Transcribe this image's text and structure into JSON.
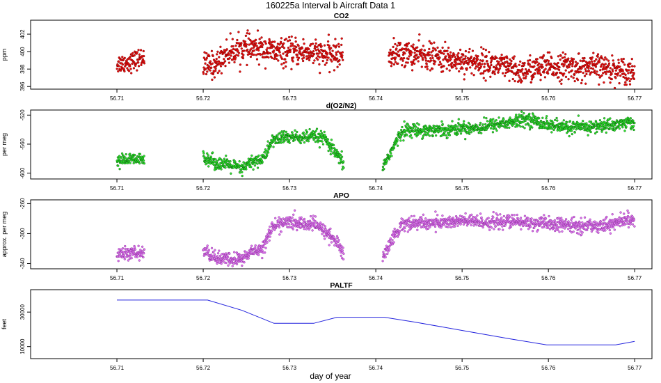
{
  "figure": {
    "title": "160225a   Interval b Aircraft Data 1",
    "xlabel": "day of year",
    "x_ticks": [
      56.71,
      56.72,
      56.73,
      56.74,
      56.75,
      56.76,
      56.77
    ],
    "xlim": [
      56.7,
      56.772
    ]
  },
  "chart_data": [
    {
      "type": "scatter",
      "title": "CO2",
      "ylabel": "ppm",
      "ylim": [
        395.7,
        403.6
      ],
      "y_ticks": [
        396,
        398,
        400,
        402
      ],
      "color": "#e81010",
      "edge": "#7a0000",
      "segments": [
        {
          "x0": 56.71,
          "x1": 56.7132,
          "anchors": [
            [
              56.71,
              398.6
            ],
            [
              56.7115,
              398.8
            ],
            [
              56.7132,
              399.4
            ]
          ],
          "noise": 0.55
        },
        {
          "x0": 56.72,
          "x1": 56.7362,
          "anchors": [
            [
              56.72,
              398.3
            ],
            [
              56.7215,
              398.5
            ],
            [
              56.7225,
              399.7
            ],
            [
              56.7245,
              400.4
            ],
            [
              56.727,
              400.3
            ],
            [
              56.7285,
              399.9
            ],
            [
              56.73,
              399.9
            ],
            [
              56.732,
              400.0
            ],
            [
              56.734,
              399.6
            ],
            [
              56.7362,
              399.7
            ]
          ],
          "noise": 0.75
        },
        {
          "x0": 56.7415,
          "x1": 56.77,
          "anchors": [
            [
              56.7415,
              399.6
            ],
            [
              56.743,
              399.8
            ],
            [
              56.745,
              399.6
            ],
            [
              56.748,
              399.2
            ],
            [
              56.75,
              399.0
            ],
            [
              56.753,
              398.6
            ],
            [
              56.755,
              398.2
            ],
            [
              56.7565,
              397.6
            ],
            [
              56.758,
              398.0
            ],
            [
              56.76,
              398.2
            ],
            [
              56.762,
              398.3
            ],
            [
              56.764,
              398.1
            ],
            [
              56.766,
              398.2
            ],
            [
              56.768,
              397.9
            ],
            [
              56.77,
              397.7
            ]
          ],
          "noise": 0.75
        }
      ]
    },
    {
      "type": "scatter",
      "title": "d(O2/N2)",
      "ylabel": "per meg",
      "ylim": [
        -608,
        -513
      ],
      "y_ticks": [
        -600,
        -560,
        -520
      ],
      "color": "#2ee62e",
      "edge": "#0a5a0a",
      "segments": [
        {
          "x0": 56.71,
          "x1": 56.7132,
          "anchors": [
            [
              56.71,
              -583
            ],
            [
              56.7115,
              -581
            ],
            [
              56.7132,
              -582
            ]
          ],
          "noise": 4
        },
        {
          "x0": 56.72,
          "x1": 56.7363,
          "anchors": [
            [
              56.72,
              -576
            ],
            [
              56.7215,
              -586
            ],
            [
              56.7235,
              -590
            ],
            [
              56.7245,
              -595
            ],
            [
              56.7255,
              -585
            ],
            [
              56.727,
              -580
            ],
            [
              56.728,
              -555
            ],
            [
              56.7295,
              -550
            ],
            [
              56.7315,
              -551
            ],
            [
              56.733,
              -550
            ],
            [
              56.734,
              -552
            ],
            [
              56.735,
              -568
            ],
            [
              56.7363,
              -588
            ]
          ],
          "noise": 4.5
        },
        {
          "x0": 56.7408,
          "x1": 56.77,
          "anchors": [
            [
              56.7408,
              -592
            ],
            [
              56.742,
              -565
            ],
            [
              56.7432,
              -540
            ],
            [
              56.745,
              -541
            ],
            [
              56.748,
              -540
            ],
            [
              56.75,
              -538
            ],
            [
              56.752,
              -537
            ],
            [
              56.754,
              -532
            ],
            [
              56.756,
              -530
            ],
            [
              56.7575,
              -525
            ],
            [
              56.759,
              -530
            ],
            [
              56.761,
              -536
            ],
            [
              56.764,
              -537
            ],
            [
              56.766,
              -535
            ],
            [
              56.768,
              -533
            ],
            [
              56.7695,
              -530
            ],
            [
              56.77,
              -532
            ]
          ],
          "noise": 4.5
        }
      ]
    },
    {
      "type": "scatter",
      "title": "APO",
      "ylabel": "approx. per meg",
      "ylim": [
        -347,
        -255
      ],
      "y_ticks": [
        -340,
        -300,
        -260
      ],
      "color": "#dd77ee",
      "edge": "#8a2e9a",
      "segments": [
        {
          "x0": 56.71,
          "x1": 56.7132,
          "anchors": [
            [
              56.71,
              -328
            ],
            [
              56.7115,
              -326
            ],
            [
              56.7132,
              -326
            ]
          ],
          "noise": 4
        },
        {
          "x0": 56.72,
          "x1": 56.7363,
          "anchors": [
            [
              56.72,
              -322
            ],
            [
              56.7215,
              -333
            ],
            [
              56.7235,
              -335
            ],
            [
              56.7245,
              -334
            ],
            [
              56.7255,
              -325
            ],
            [
              56.727,
              -318
            ],
            [
              56.728,
              -291
            ],
            [
              56.7295,
              -285
            ],
            [
              56.7315,
              -287
            ],
            [
              56.733,
              -288
            ],
            [
              56.7345,
              -300
            ],
            [
              56.7355,
              -312
            ],
            [
              56.7363,
              -328
            ]
          ],
          "noise": 4.5
        },
        {
          "x0": 56.7408,
          "x1": 56.77,
          "anchors": [
            [
              56.7408,
              -332
            ],
            [
              56.742,
              -305
            ],
            [
              56.7432,
              -286
            ],
            [
              56.746,
              -286
            ],
            [
              56.748,
              -285
            ],
            [
              56.75,
              -283
            ],
            [
              56.753,
              -285
            ],
            [
              56.756,
              -284
            ],
            [
              56.758,
              -286
            ],
            [
              56.761,
              -288
            ],
            [
              56.764,
              -290
            ],
            [
              56.767,
              -288
            ],
            [
              56.7695,
              -280
            ],
            [
              56.77,
              -284
            ]
          ],
          "noise": 4.5
        }
      ]
    },
    {
      "type": "line",
      "title": "PALTF",
      "ylabel": "feet",
      "ylim": [
        3000,
        43000
      ],
      "y_ticks": [
        10000,
        30000
      ],
      "color": "#2020dd",
      "x": [
        56.71,
        56.7205,
        56.7245,
        56.7282,
        56.7328,
        56.7355,
        56.741,
        56.7445,
        56.7505,
        56.7555,
        56.7598,
        56.7678,
        56.77
      ],
      "y": [
        37000,
        37000,
        31000,
        23500,
        23500,
        27000,
        27000,
        24200,
        18900,
        14500,
        11000,
        11000,
        13000
      ]
    }
  ]
}
